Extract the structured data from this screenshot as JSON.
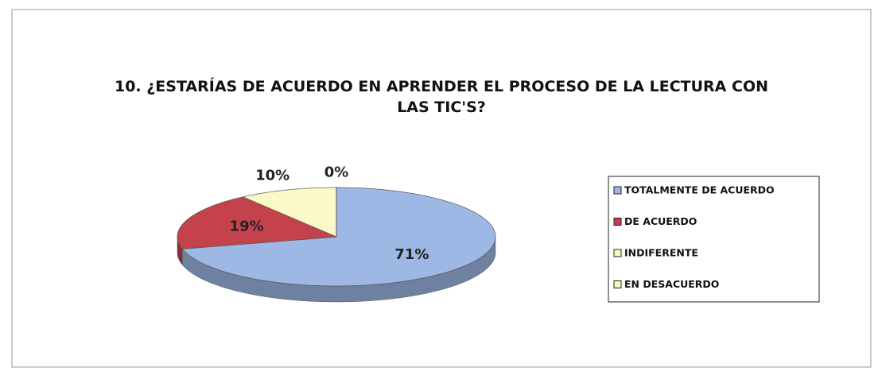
{
  "chart_data": {
    "type": "pie",
    "title": "10. ¿ESTARÍAS DE ACUERDO EN APRENDER EL PROCESO DE LA LECTURA CON LAS TIC'S?",
    "categories": [
      "TOTALMENTE DE ACUERDO",
      "DE ACUERDO",
      "INDIFERENTE",
      "EN DESACUERDO"
    ],
    "values": [
      71,
      19,
      10,
      0
    ],
    "value_labels": [
      "71%",
      "19%",
      "10%",
      "0%"
    ],
    "colors": [
      "#9db8e4",
      "#c4424c",
      "#fbf9c6",
      "#fbf9c6"
    ],
    "legend": "right"
  }
}
